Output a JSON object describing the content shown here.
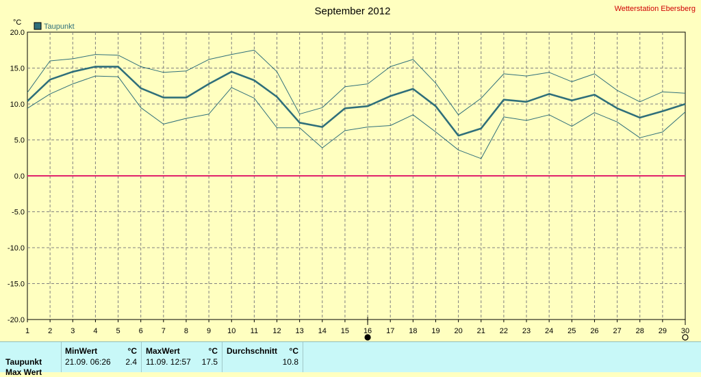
{
  "header": {
    "title": "September 2012",
    "station": "Wetterstation Ebersberg",
    "unit": "°C"
  },
  "colors": {
    "background": "#ffffc0",
    "series": "#2f6f7a",
    "zero_line": "#e0206a",
    "grid": "#7f7f7f",
    "table_bg": "#c8f8f8"
  },
  "chart_data": {
    "type": "line",
    "legend": {
      "entries": [
        "Taupunkt"
      ],
      "placement": "top-left"
    },
    "x": [
      1,
      2,
      3,
      4,
      5,
      6,
      7,
      8,
      9,
      10,
      11,
      12,
      13,
      14,
      15,
      16,
      17,
      18,
      19,
      20,
      21,
      22,
      23,
      24,
      25,
      26,
      27,
      28,
      29,
      30
    ],
    "x_tick_labels": [
      "1",
      "2",
      "3",
      "4",
      "5",
      "6",
      "7",
      "8",
      "9",
      "10",
      "11",
      "12",
      "13",
      "14",
      "15",
      "16",
      "17",
      "18",
      "19",
      "20",
      "21",
      "22",
      "23",
      "24",
      "25",
      "26",
      "27",
      "28",
      "29",
      "30"
    ],
    "y_tick_labels": [
      "20.0",
      "15.0",
      "10.0",
      "5.0",
      "0.0",
      "-5.0",
      "-10.0",
      "-15.0",
      "-20.0"
    ],
    "ylim": [
      -20,
      20
    ],
    "xlim": [
      1,
      30
    ],
    "grid": true,
    "series": [
      {
        "name": "Taupunkt",
        "role": "mean",
        "values": [
          10.4,
          13.4,
          14.5,
          15.2,
          15.2,
          12.2,
          10.9,
          10.9,
          12.8,
          14.5,
          13.3,
          11.0,
          7.4,
          6.8,
          9.4,
          9.7,
          11.1,
          12.1,
          9.7,
          5.6,
          6.6,
          10.6,
          10.3,
          11.4,
          10.5,
          11.3,
          9.4,
          8.1,
          9.0,
          10.0
        ]
      },
      {
        "role": "max",
        "values": [
          11.6,
          16.0,
          16.3,
          16.9,
          16.8,
          15.2,
          14.4,
          14.6,
          16.2,
          16.9,
          17.5,
          14.5,
          8.6,
          9.5,
          12.4,
          12.8,
          15.2,
          16.2,
          12.9,
          8.5,
          10.8,
          14.2,
          13.9,
          14.4,
          13.1,
          14.2,
          11.9,
          10.3,
          11.7,
          11.5
        ]
      },
      {
        "role": "min",
        "values": [
          9.4,
          11.4,
          12.8,
          13.9,
          13.8,
          9.5,
          7.2,
          8.0,
          8.6,
          12.3,
          10.8,
          6.7,
          6.7,
          3.9,
          6.3,
          6.8,
          7.0,
          8.5,
          6.1,
          3.6,
          2.4,
          8.2,
          7.7,
          8.5,
          6.9,
          8.8,
          7.5,
          5.3,
          6.1,
          8.9
        ]
      }
    ],
    "markers": [
      {
        "x": 16,
        "symbol": "filled-circle"
      },
      {
        "x": 30,
        "symbol": "open-circle"
      }
    ]
  },
  "table": {
    "headers": [
      "MinWert",
      "°C",
      "MaxWert",
      "°C",
      "Durchschnitt",
      "°C"
    ],
    "rows": [
      {
        "label": "Taupunkt",
        "min_time": "21.09.  06:26",
        "min_value": "2.4",
        "max_time": "11.09.  12:57",
        "max_value": "17.5",
        "avg_value": "10.8"
      }
    ],
    "partial_row_label": "Max Wert"
  }
}
